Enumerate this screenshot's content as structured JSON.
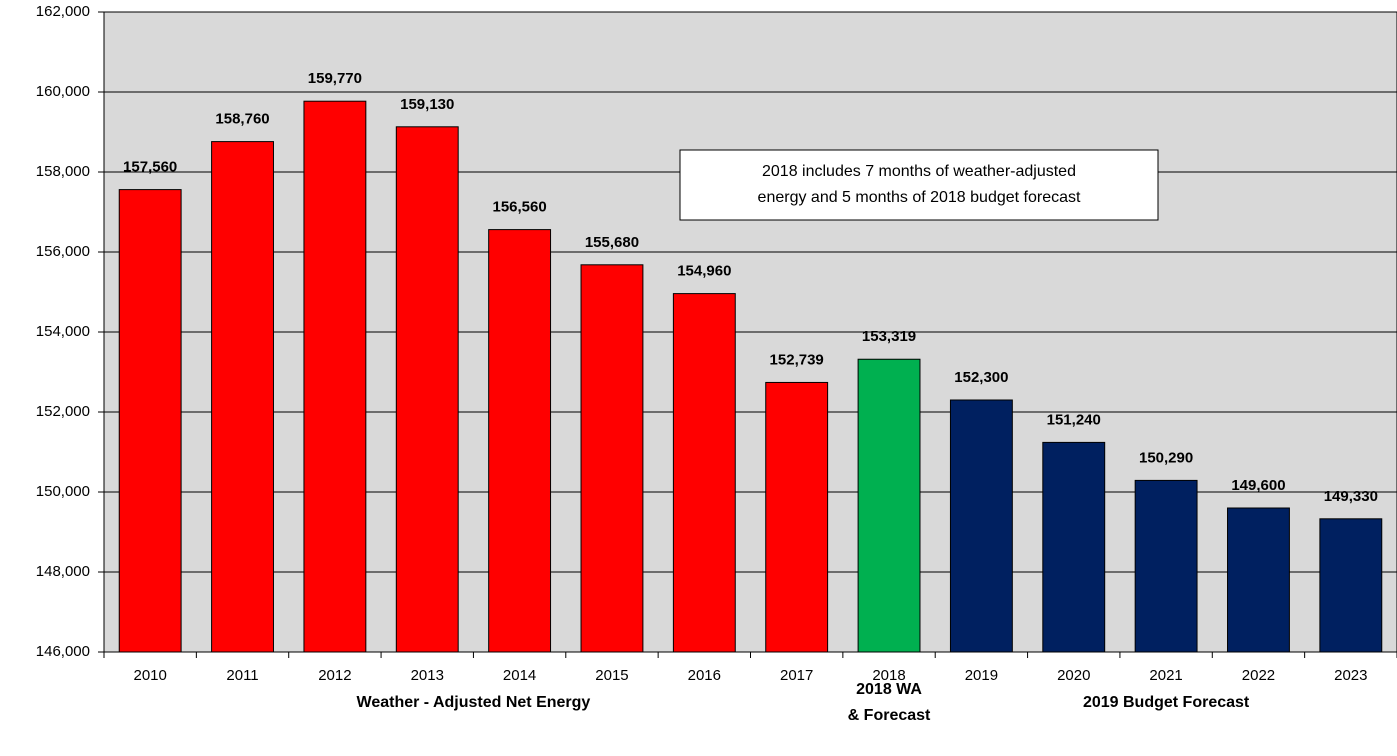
{
  "chart_data": {
    "type": "bar",
    "categories": [
      "2010",
      "2011",
      "2012",
      "2013",
      "2014",
      "2015",
      "2016",
      "2017",
      "2018",
      "2019",
      "2020",
      "2021",
      "2022",
      "2023"
    ],
    "values": [
      157560,
      158760,
      159770,
      159130,
      156560,
      155680,
      154960,
      152739,
      153319,
      152300,
      151240,
      150290,
      149600,
      149330
    ],
    "value_labels": [
      "157,560",
      "158,760",
      "159,770",
      "159,130",
      "156,560",
      "155,680",
      "154,960",
      "152,739",
      "153,319",
      "152,300",
      "151,240",
      "150,290",
      "149,600",
      "149,330"
    ],
    "colors": [
      "#ff0000",
      "#ff0000",
      "#ff0000",
      "#ff0000",
      "#ff0000",
      "#ff0000",
      "#ff0000",
      "#ff0000",
      "#00b050",
      "#002060",
      "#002060",
      "#002060",
      "#002060",
      "#002060"
    ],
    "ylim": [
      146000,
      162000
    ],
    "yticks": [
      {
        "value": 146000,
        "label": "146,000"
      },
      {
        "value": 148000,
        "label": "148,000"
      },
      {
        "value": 150000,
        "label": "150,000"
      },
      {
        "value": 152000,
        "label": "152,000"
      },
      {
        "value": 154000,
        "label": "154,000"
      },
      {
        "value": 156000,
        "label": "156,000"
      },
      {
        "value": 158000,
        "label": "158,000"
      },
      {
        "value": 160000,
        "label": "160,000"
      },
      {
        "value": 162000,
        "label": "162,000"
      }
    ],
    "grid": true,
    "annotation": [
      "2018 includes 7 months of weather-adjusted",
      "energy and 5 months of 2018 budget forecast"
    ],
    "annotation_color": "#00b050",
    "group_labels": [
      {
        "lines": [
          "Weather - Adjusted Net Energy"
        ],
        "color": "#ff0000"
      },
      {
        "lines": [
          "2018 WA",
          "& Forecast"
        ],
        "color": "#00b050"
      },
      {
        "lines": [
          "2019 Budget Forecast"
        ],
        "color": "#002060"
      }
    ]
  }
}
